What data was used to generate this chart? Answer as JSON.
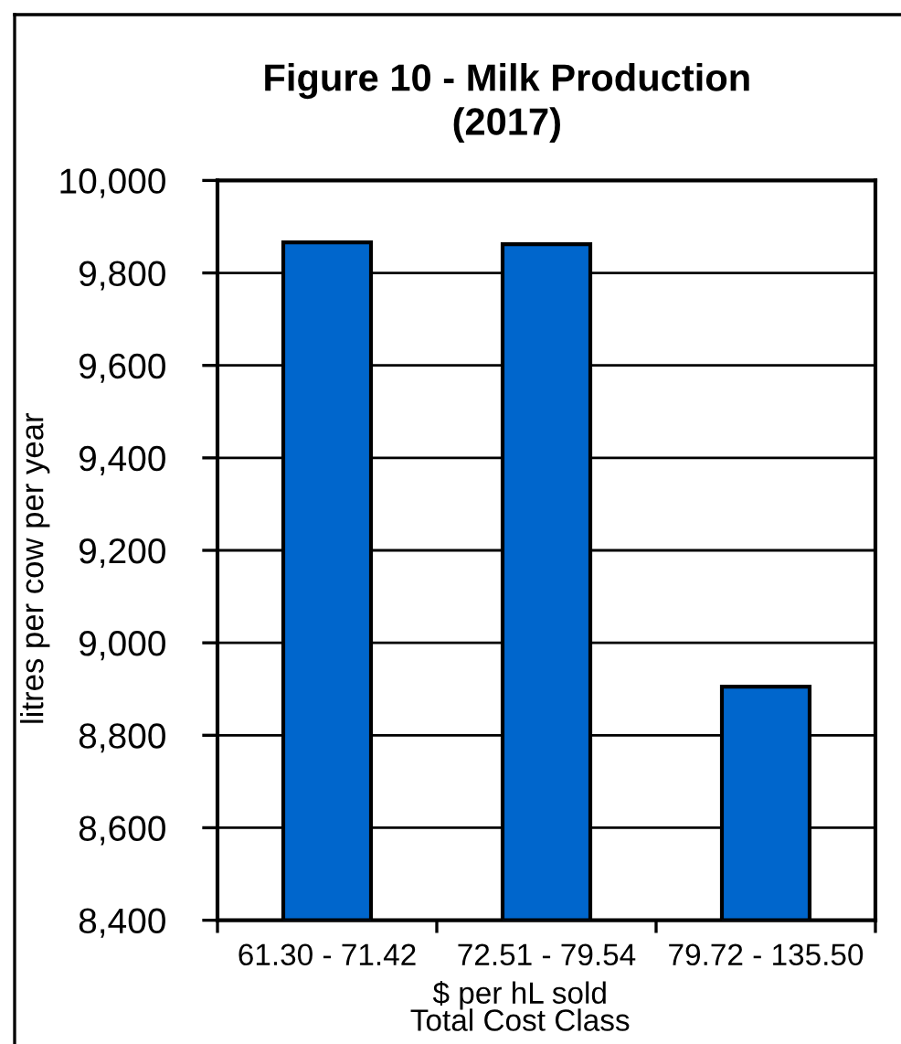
{
  "chart_data": {
    "type": "bar",
    "title": "Figure 10 - Milk Production\n(2017)",
    "xlabel": "$ per hL sold\nTotal Cost Class",
    "ylabel": "litres per cow per year",
    "categories": [
      "61.30 - 71.42",
      "72.51 - 79.54",
      "79.72 - 135.50"
    ],
    "values": [
      9866,
      9862,
      8905
    ],
    "color": "#0066cc",
    "ylim": [
      8400,
      10000
    ],
    "yticks": [
      {
        "value": 8400,
        "label": "8,400"
      },
      {
        "value": 8600,
        "label": "8,600"
      },
      {
        "value": 8800,
        "label": "8,800"
      },
      {
        "value": 9000,
        "label": "9,000"
      },
      {
        "value": 9200,
        "label": "9,200"
      },
      {
        "value": 9400,
        "label": "9,400"
      },
      {
        "value": 9600,
        "label": "9,600"
      },
      {
        "value": 9800,
        "label": "9,800"
      },
      {
        "value": 10000,
        "label": "10,000"
      }
    ],
    "grid": "y"
  }
}
